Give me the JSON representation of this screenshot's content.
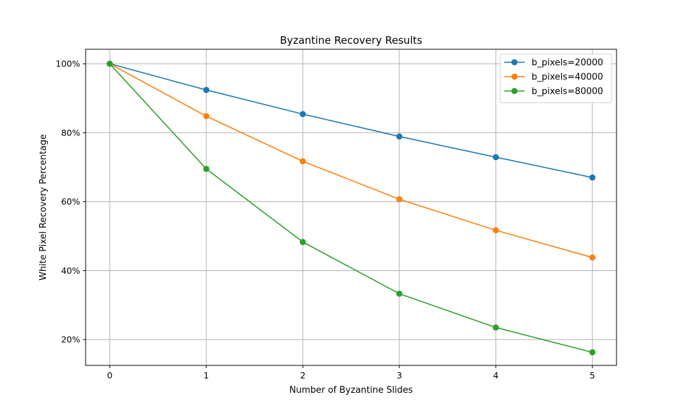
{
  "chart_data": {
    "type": "line",
    "title": "Byzantine Recovery Results",
    "xlabel": "Number of Byzantine Slides",
    "ylabel": "White Pixel Recovery Percentage",
    "x": [
      0,
      1,
      2,
      3,
      4,
      5
    ],
    "xlim": [
      -0.25,
      5.25
    ],
    "ylim": [
      12.5,
      104.2
    ],
    "xticks": [
      0,
      1,
      2,
      3,
      4,
      5
    ],
    "yticks": [
      20,
      40,
      60,
      80,
      100
    ],
    "ytick_labels": [
      "20%",
      "40%",
      "60%",
      "80%",
      "100%"
    ],
    "grid": true,
    "legend_position": "top-right",
    "series": [
      {
        "name": "b_pixels=20000",
        "color": "#1f77b4",
        "values": [
          100,
          92.4,
          85.4,
          78.9,
          72.9,
          67.0
        ]
      },
      {
        "name": "b_pixels=40000",
        "color": "#ff7f0e",
        "values": [
          100,
          84.8,
          71.7,
          60.7,
          51.7,
          43.8
        ]
      },
      {
        "name": "b_pixels=80000",
        "color": "#2ca02c",
        "values": [
          100,
          69.5,
          48.3,
          33.3,
          23.5,
          16.3
        ]
      }
    ]
  }
}
